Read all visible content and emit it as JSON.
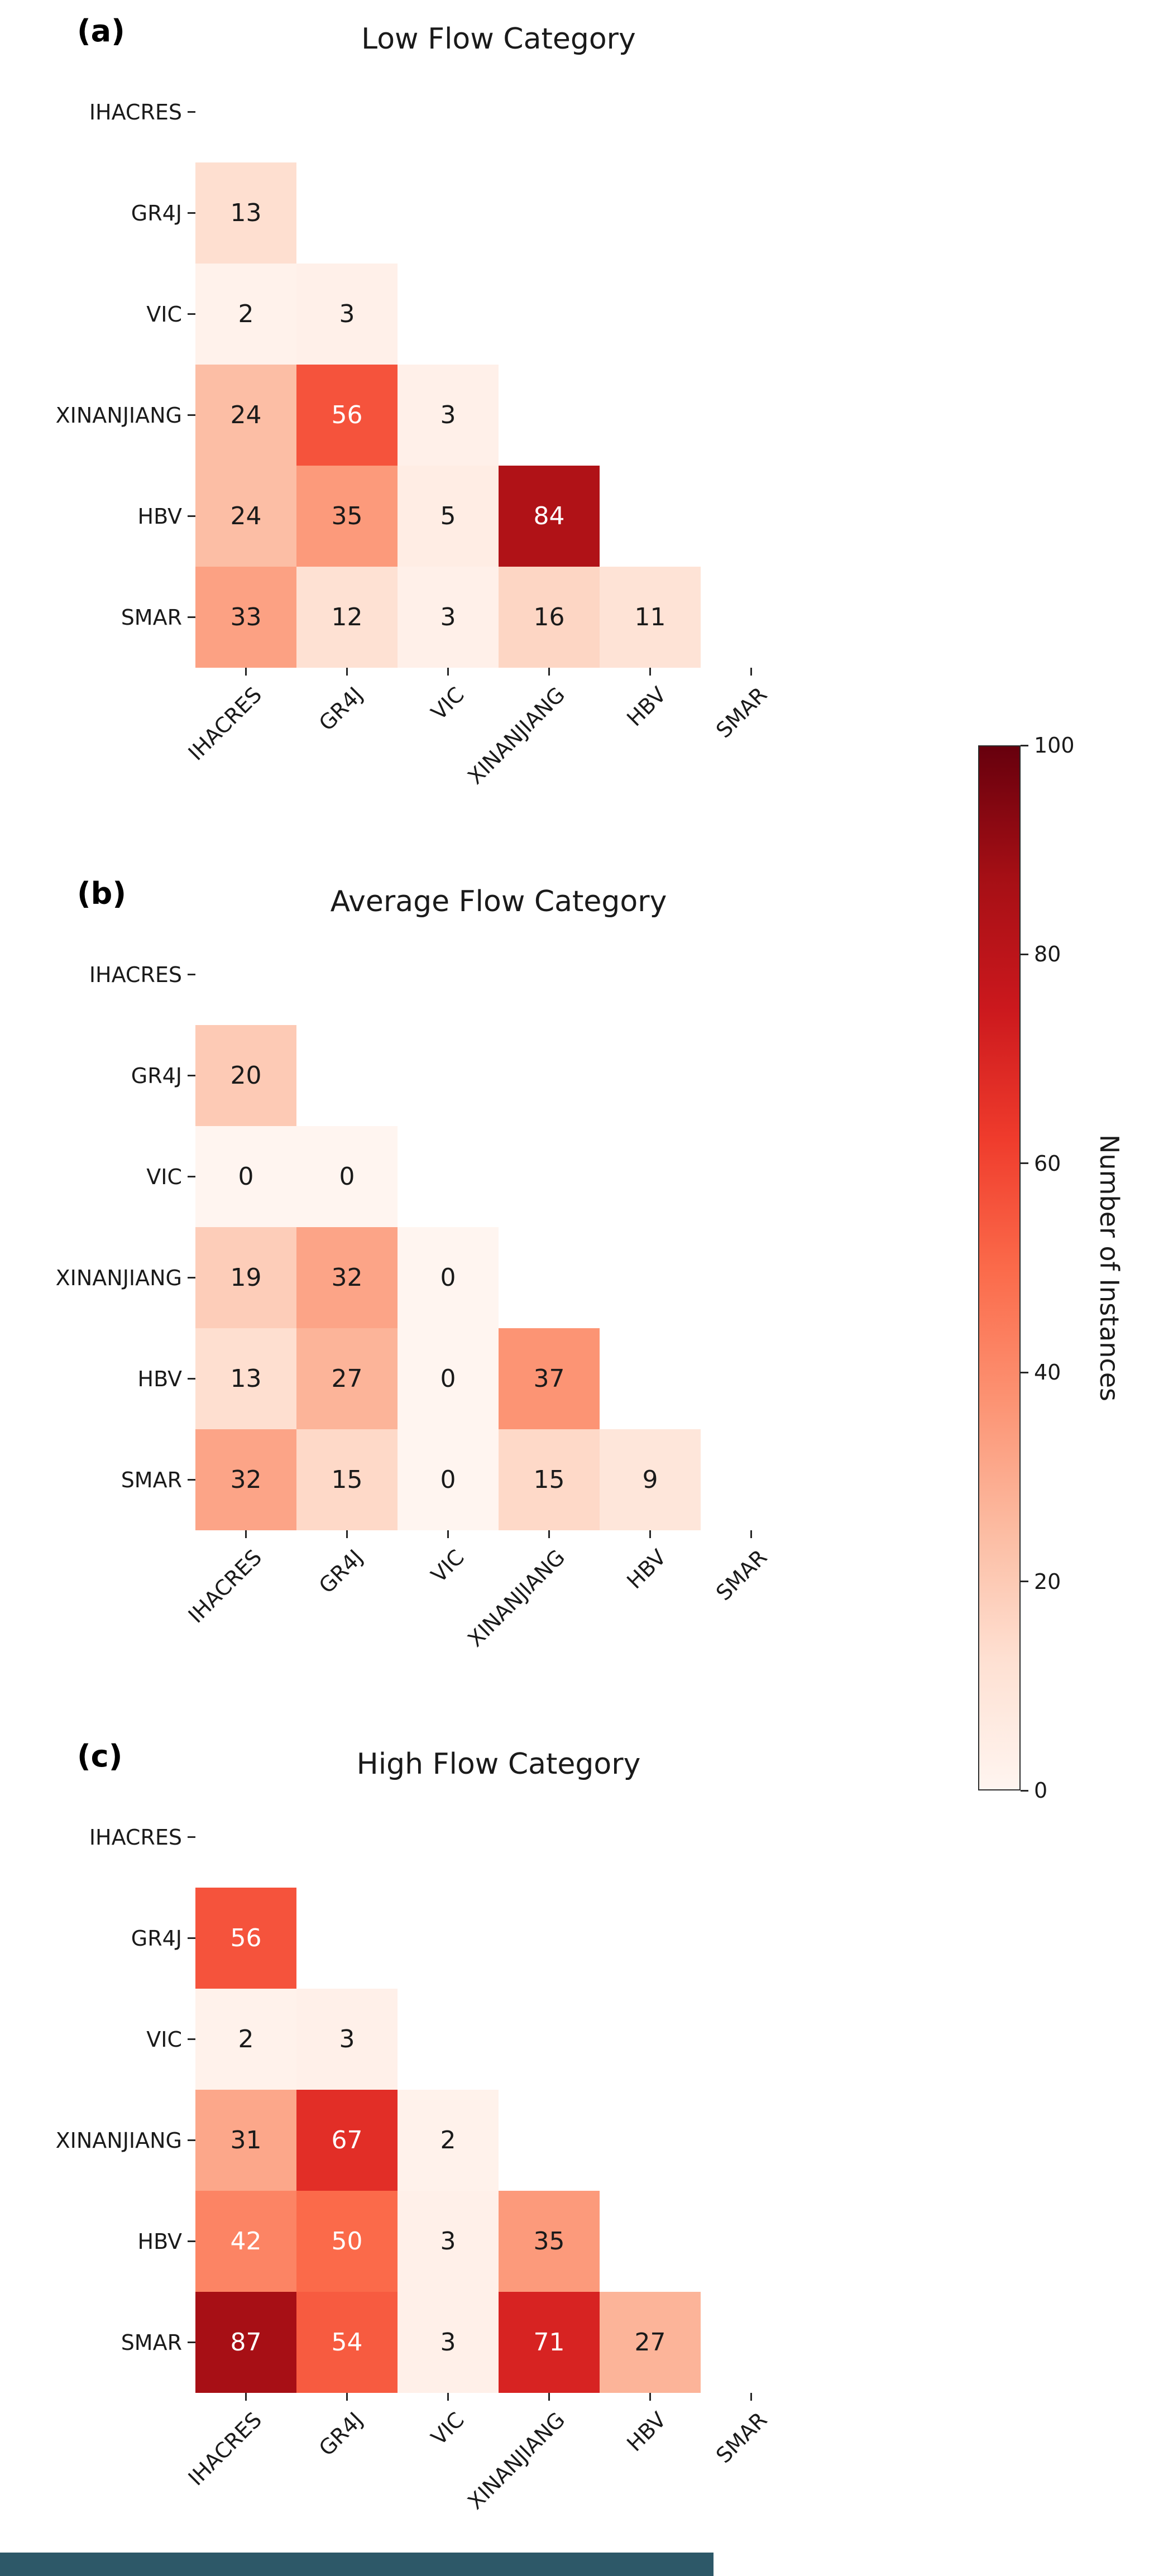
{
  "colors": {
    "background": "#ffffff",
    "colormap": "Reds",
    "stops": [
      "#fff5f0",
      "#fee0d2",
      "#fcbba1",
      "#fc9272",
      "#fb6a4a",
      "#ef3b2c",
      "#cb181d",
      "#a50f15",
      "#67000d"
    ],
    "annot_white_threshold": 40,
    "annot_dark": "#1a1a1a",
    "annot_light": "#ffffff",
    "tick_color": "#262626",
    "bottom_strip": "#2d5868"
  },
  "colorbar": {
    "label": "Number of Instances",
    "ticks": [
      0,
      20,
      40,
      60,
      80,
      100
    ],
    "vmin": 0,
    "vmax": 100
  },
  "models": [
    "IHACRES",
    "GR4J",
    "VIC",
    "XINANJIANG",
    "HBV",
    "SMAR"
  ],
  "chart_data": [
    {
      "type": "heatmap",
      "panel_label": "(a)",
      "title": "Low Flow Category",
      "categories": [
        "IHACRES",
        "GR4J",
        "VIC",
        "XINANJIANG",
        "HBV",
        "SMAR"
      ],
      "vmin": 0,
      "vmax": 100,
      "matrix": [
        [
          null,
          null,
          null,
          null,
          null,
          null
        ],
        [
          13,
          null,
          null,
          null,
          null,
          null
        ],
        [
          2,
          3,
          null,
          null,
          null,
          null
        ],
        [
          24,
          56,
          3,
          null,
          null,
          null
        ],
        [
          24,
          35,
          5,
          84,
          null,
          null
        ],
        [
          33,
          12,
          3,
          16,
          11,
          null
        ]
      ]
    },
    {
      "type": "heatmap",
      "panel_label": "(b)",
      "title": "Average Flow Category",
      "categories": [
        "IHACRES",
        "GR4J",
        "VIC",
        "XINANJIANG",
        "HBV",
        "SMAR"
      ],
      "vmin": 0,
      "vmax": 100,
      "matrix": [
        [
          null,
          null,
          null,
          null,
          null,
          null
        ],
        [
          20,
          null,
          null,
          null,
          null,
          null
        ],
        [
          0,
          0,
          null,
          null,
          null,
          null
        ],
        [
          19,
          32,
          0,
          null,
          null,
          null
        ],
        [
          13,
          27,
          0,
          37,
          null,
          null
        ],
        [
          32,
          15,
          0,
          15,
          9,
          null
        ]
      ]
    },
    {
      "type": "heatmap",
      "panel_label": "(c)",
      "title": "High Flow Category",
      "categories": [
        "IHACRES",
        "GR4J",
        "VIC",
        "XINANJIANG",
        "HBV",
        "SMAR"
      ],
      "vmin": 0,
      "vmax": 100,
      "matrix": [
        [
          null,
          null,
          null,
          null,
          null,
          null
        ],
        [
          56,
          null,
          null,
          null,
          null,
          null
        ],
        [
          2,
          3,
          null,
          null,
          null,
          null
        ],
        [
          31,
          67,
          2,
          null,
          null,
          null
        ],
        [
          42,
          50,
          3,
          35,
          null,
          null
        ],
        [
          87,
          54,
          3,
          71,
          27,
          null
        ]
      ]
    }
  ]
}
